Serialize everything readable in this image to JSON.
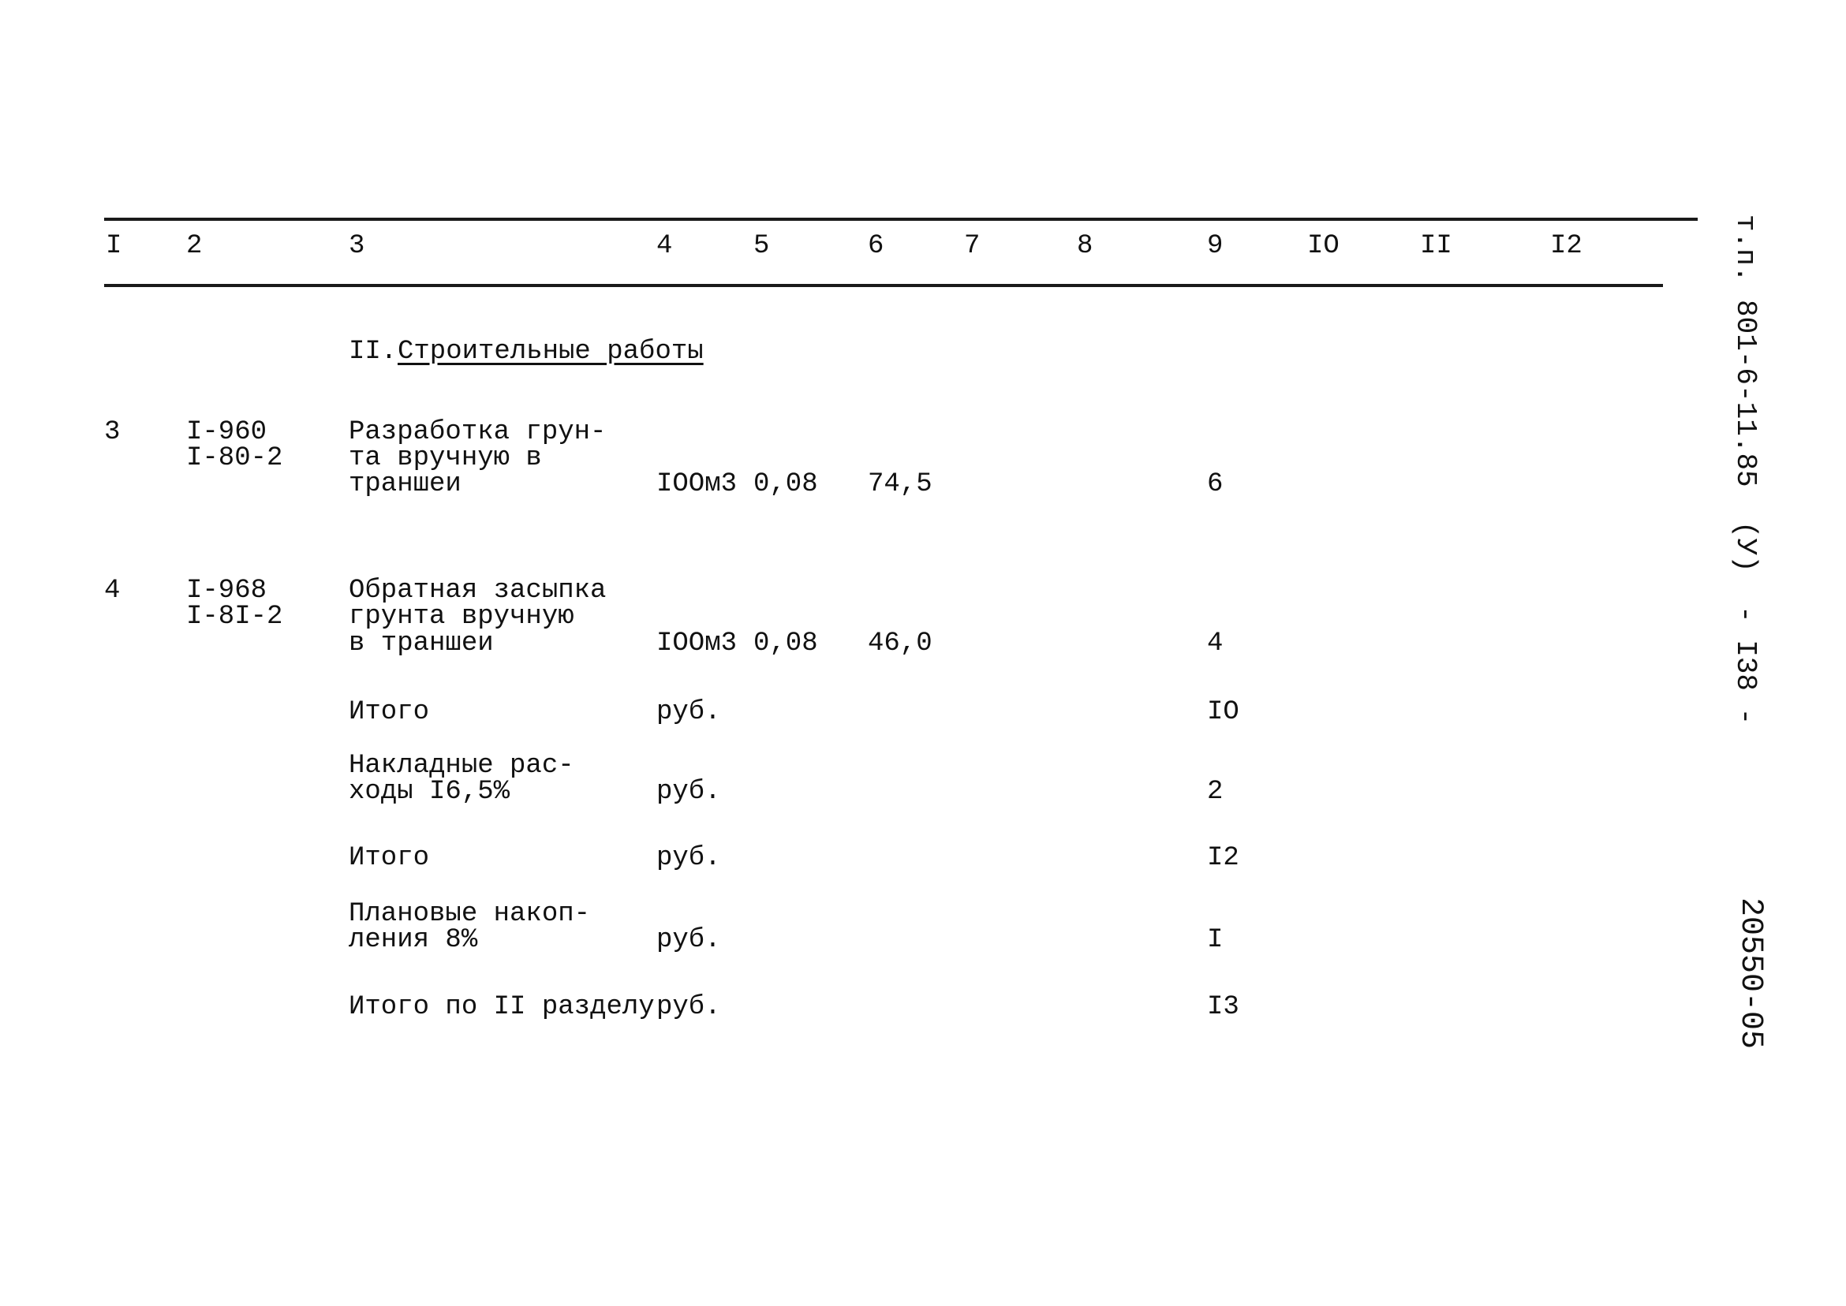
{
  "header_columns": [
    "I",
    "2",
    "3",
    "4",
    "5",
    "6",
    "7",
    "8",
    "9",
    "IO",
    "II",
    "I2"
  ],
  "section": {
    "number": "II.",
    "title": "Строительные работы"
  },
  "rows": [
    {
      "no": "3",
      "codes": [
        "I-960",
        "I-80-2"
      ],
      "name": [
        "Разработка грун-",
        "та вручную в",
        "траншеи"
      ],
      "unit": "IOOм3",
      "qty": "0,08",
      "price": "74,5",
      "total": "6"
    },
    {
      "no": "4",
      "codes": [
        "I-968",
        "I-8I-2"
      ],
      "name": [
        "Обратная засыпка",
        "грунта вручную",
        "в траншеи"
      ],
      "unit": "IOOм3",
      "qty": "0,08",
      "price": "46,0",
      "total": "4"
    }
  ],
  "summary": [
    {
      "label": [
        "Итого"
      ],
      "unit": "руб.",
      "total": "IO"
    },
    {
      "label": [
        "Накладные рас-",
        "ходы I6,5%"
      ],
      "unit": "руб.",
      "total": "2"
    },
    {
      "label": [
        "Итого"
      ],
      "unit": "руб.",
      "total": "I2"
    },
    {
      "label": [
        "Плановые накоп-",
        "ления 8%"
      ],
      "unit": "руб.",
      "total": "I"
    },
    {
      "label": [
        "Итого по II разделу"
      ],
      "unit": "руб.",
      "total": "I3"
    }
  ],
  "margin": {
    "doc_code": "т.п. 801-6-11.85  (У)",
    "page": "- I38 -",
    "inventory": "20550-05"
  }
}
